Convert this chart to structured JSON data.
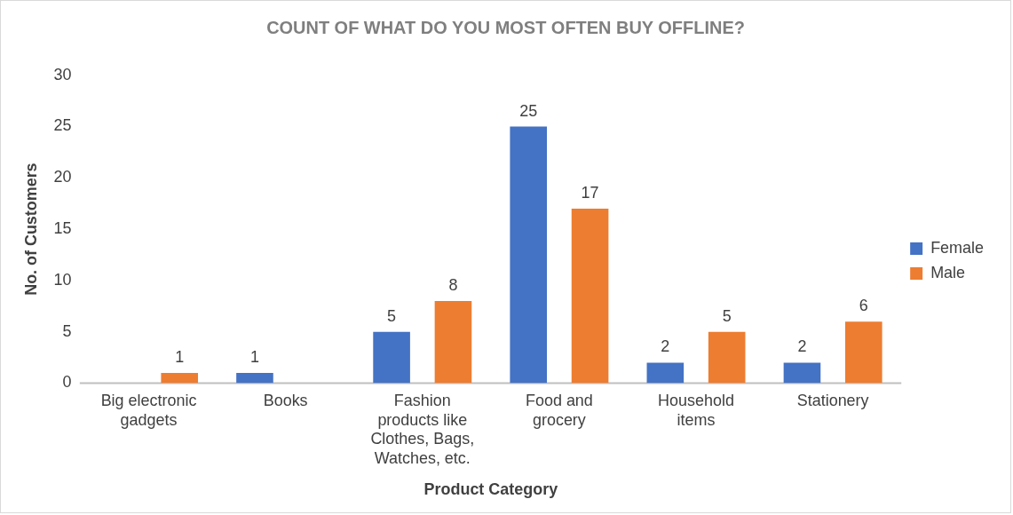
{
  "chart_data": {
    "type": "bar",
    "title": "COUNT OF WHAT DO YOU MOST OFTEN BUY OFFLINE?",
    "xlabel": "Product Category",
    "ylabel": "No. of Customers",
    "categories": [
      "Big electronic gadgets",
      "Books",
      "Fashion products like Clothes, Bags, Watches, etc.",
      "Food and grocery",
      "Household items",
      "Stationery"
    ],
    "series": [
      {
        "name": "Female",
        "color": "#4472c4",
        "values": [
          null,
          1,
          5,
          25,
          2,
          2
        ]
      },
      {
        "name": "Male",
        "color": "#ed7d31",
        "values": [
          1,
          null,
          8,
          17,
          5,
          6
        ]
      }
    ],
    "ylim": [
      0,
      30
    ],
    "yticks": [
      0,
      5,
      10,
      15,
      20,
      25,
      30
    ],
    "grid": false,
    "legend": "right",
    "data_labels": true
  }
}
